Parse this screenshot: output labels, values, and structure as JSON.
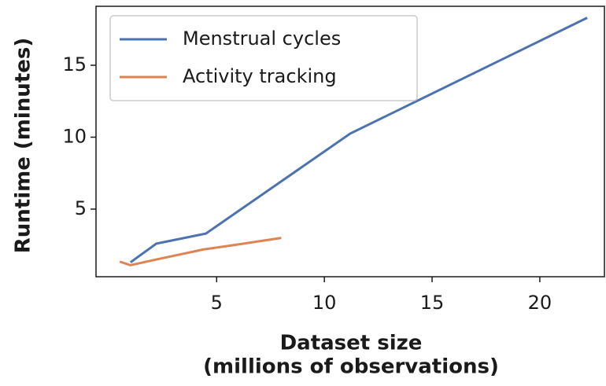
{
  "chart_data": {
    "type": "line",
    "xlabel": [
      "Dataset size",
      "(millions of observations)"
    ],
    "ylabel": "Runtime (minutes)",
    "series": [
      {
        "name": "Menstrual cycles",
        "color": "#4c72b0",
        "x": [
          1.0,
          2.2,
          4.5,
          11.2,
          22.2
        ],
        "values": [
          1.3,
          2.6,
          3.3,
          10.25,
          18.3
        ]
      },
      {
        "name": "Activity tracking",
        "color": "#dd8452",
        "x": [
          0.5,
          1.0,
          2.2,
          4.4,
          5.8,
          8.0
        ],
        "values": [
          1.35,
          1.1,
          1.5,
          2.2,
          2.5,
          3.0
        ]
      }
    ],
    "xlim": [
      -0.6,
      23
    ],
    "ylim": [
      0.3,
      19.1
    ],
    "xticks": [
      5,
      10,
      15,
      20
    ],
    "yticks": [
      5,
      10,
      15
    ],
    "legend": "upper left"
  }
}
